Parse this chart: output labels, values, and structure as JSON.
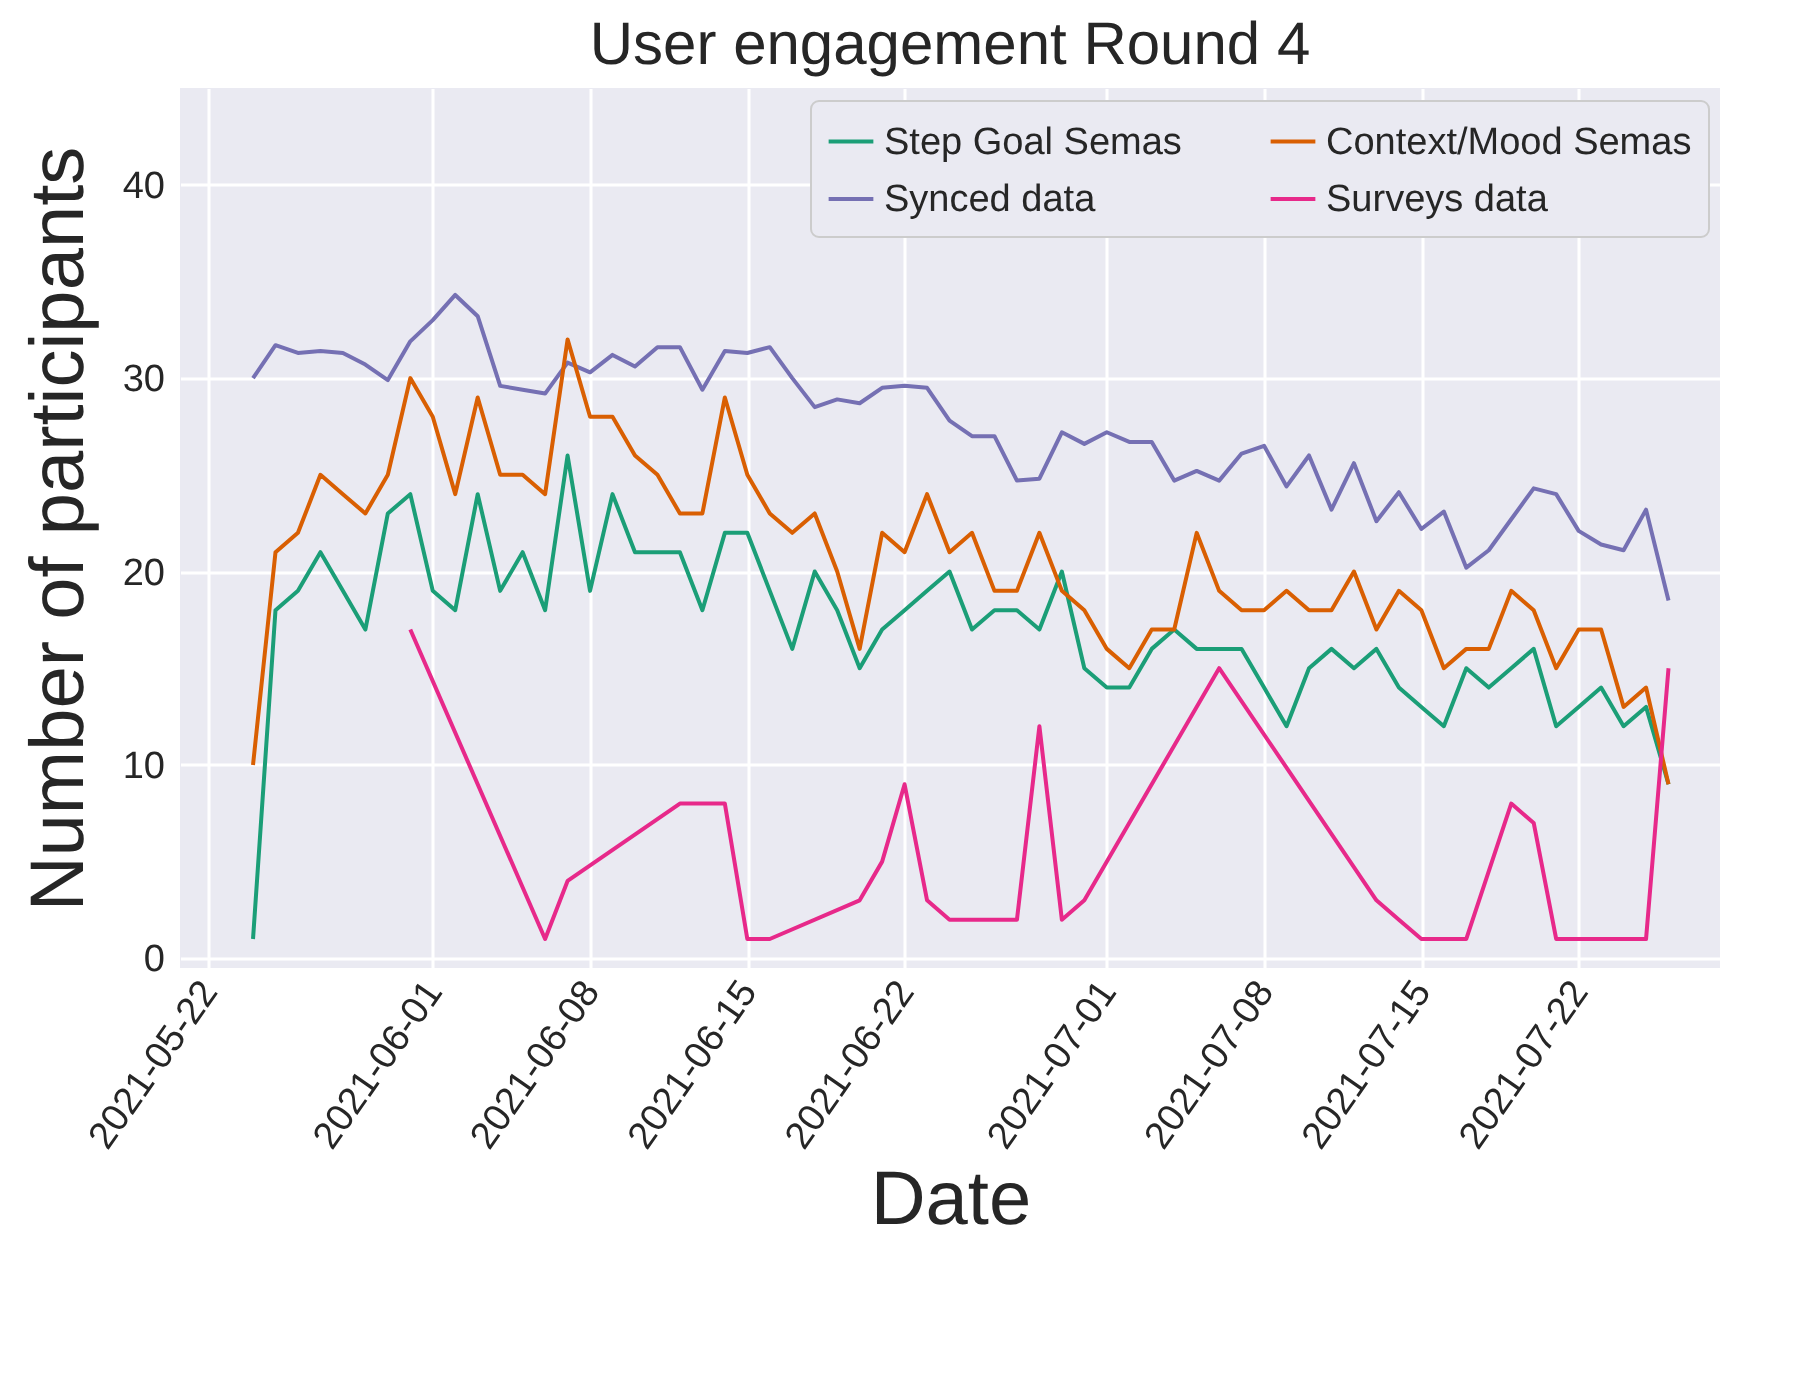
{
  "chart_data": {
    "type": "line",
    "title": "User engagement Round 4",
    "xlabel": "Date",
    "ylabel": "Number of participants",
    "x": [
      "2021-05-24",
      "2021-05-25",
      "2021-05-26",
      "2021-05-27",
      "2021-05-28",
      "2021-05-29",
      "2021-05-30",
      "2021-05-31",
      "2021-06-01",
      "2021-06-02",
      "2021-06-03",
      "2021-06-04",
      "2021-06-05",
      "2021-06-06",
      "2021-06-07",
      "2021-06-08",
      "2021-06-09",
      "2021-06-10",
      "2021-06-11",
      "2021-06-12",
      "2021-06-13",
      "2021-06-14",
      "2021-06-15",
      "2021-06-16",
      "2021-06-17",
      "2021-06-18",
      "2021-06-19",
      "2021-06-20",
      "2021-06-21",
      "2021-06-22",
      "2021-06-23",
      "2021-06-24",
      "2021-06-25",
      "2021-06-26",
      "2021-06-27",
      "2021-06-28",
      "2021-06-29",
      "2021-06-30",
      "2021-07-01",
      "2021-07-02",
      "2021-07-03",
      "2021-07-04",
      "2021-07-05",
      "2021-07-06",
      "2021-07-07",
      "2021-07-08",
      "2021-07-09",
      "2021-07-10",
      "2021-07-11",
      "2021-07-12",
      "2021-07-13",
      "2021-07-14",
      "2021-07-15",
      "2021-07-16",
      "2021-07-17",
      "2021-07-18",
      "2021-07-19",
      "2021-07-20",
      "2021-07-21",
      "2021-07-22",
      "2021-07-23",
      "2021-07-24",
      "2021-07-25",
      "2021-07-26"
    ],
    "series": [
      {
        "name": "Step Goal Semas",
        "color": "#1b9e77",
        "values": [
          1,
          18,
          19,
          21,
          19,
          17,
          23,
          24,
          19,
          18,
          24,
          19,
          21,
          18,
          26,
          19,
          24,
          21,
          21,
          21,
          18,
          22,
          22,
          19,
          16,
          20,
          18,
          15,
          17,
          18,
          19,
          20,
          17,
          18,
          18,
          17,
          20,
          15,
          14,
          14,
          16,
          17,
          16,
          16,
          16,
          14,
          12,
          15,
          16,
          15,
          16,
          14,
          13,
          12,
          15,
          14,
          15,
          16,
          12,
          13,
          14,
          12,
          13,
          9
        ]
      },
      {
        "name": "Synced data",
        "color": "#7570b3",
        "values": [
          30,
          31.7,
          31.3,
          31.4,
          31.3,
          30.7,
          29.9,
          31.9,
          33,
          34.3,
          33.2,
          29.6,
          29.4,
          29.2,
          30.8,
          30.3,
          31.2,
          30.6,
          31.6,
          31.6,
          29.4,
          31.4,
          31.3,
          31.6,
          30,
          28.5,
          28.9,
          28.7,
          29.5,
          29.6,
          29.5,
          27.8,
          27,
          27,
          24.7,
          24.8,
          27.2,
          26.6,
          27.2,
          26.7,
          26.7,
          24.7,
          25.2,
          24.7,
          26.1,
          26.5,
          24.4,
          26,
          23.2,
          25.6,
          22.6,
          24.1,
          22.2,
          23.1,
          20.2,
          21.1,
          22.7,
          24.3,
          24,
          22.1,
          21.4,
          21.1,
          23.2,
          18.5
        ]
      },
      {
        "name": "Context/Mood Semas",
        "color": "#d95f02",
        "values": [
          10,
          21,
          22,
          25,
          24,
          23,
          25,
          30,
          28,
          24,
          29,
          25,
          25,
          24,
          32,
          28,
          28,
          26,
          25,
          23,
          23,
          29,
          25,
          23,
          22,
          23,
          20,
          16,
          22,
          21,
          24,
          21,
          22,
          19,
          19,
          22,
          19,
          18,
          16,
          15,
          17,
          17,
          22,
          19,
          18,
          18,
          19,
          18,
          18,
          20,
          17,
          19,
          18,
          15,
          16,
          16,
          19,
          18,
          15,
          17,
          17,
          13,
          14,
          9
        ]
      },
      {
        "name": "Surveys data",
        "color": "#e7298a",
        "x": [
          "2021-05-31",
          "2021-06-06",
          "2021-06-07",
          "2021-06-12",
          "2021-06-13",
          "2021-06-14",
          "2021-06-15",
          "2021-06-16",
          "2021-06-20",
          "2021-06-21",
          "2021-06-22",
          "2021-06-23",
          "2021-06-24",
          "2021-06-25",
          "2021-06-26",
          "2021-06-27",
          "2021-06-28",
          "2021-06-29",
          "2021-06-30",
          "2021-07-06",
          "2021-07-13",
          "2021-07-14",
          "2021-07-15",
          "2021-07-16",
          "2021-07-17",
          "2021-07-19",
          "2021-07-20",
          "2021-07-21",
          "2021-07-22",
          "2021-07-23",
          "2021-07-24",
          "2021-07-25",
          "2021-07-26"
        ],
        "values": [
          17,
          1,
          4,
          8,
          8,
          8,
          1,
          1,
          3,
          5,
          9,
          3,
          2,
          2,
          2,
          2,
          12,
          2,
          3,
          15,
          3,
          2,
          1,
          1,
          1,
          8,
          7,
          1,
          1,
          1,
          1,
          1,
          15
        ]
      }
    ],
    "xlim": [
      "2021-05-20T18:00",
      "2021-07-28T07:00"
    ],
    "xticks": [
      "2021-05-22",
      "2021-06-01",
      "2021-06-08",
      "2021-06-15",
      "2021-06-22",
      "2021-07-01",
      "2021-07-08",
      "2021-07-15",
      "2021-07-22"
    ],
    "ylim": [
      -0.5,
      45
    ],
    "yticks": [
      0,
      10,
      20,
      30,
      40
    ],
    "grid": true,
    "legend": "top right"
  }
}
